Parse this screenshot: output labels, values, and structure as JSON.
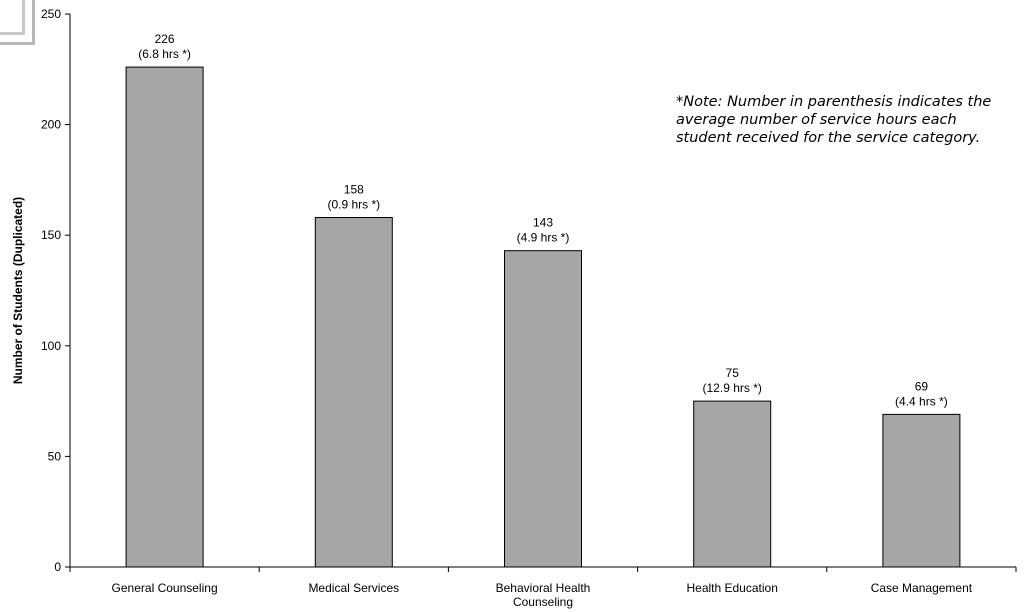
{
  "chart_data": {
    "type": "bar",
    "title": "",
    "xlabel": "",
    "ylabel": "Number of Students (Duplicated)",
    "ylim": [
      0,
      250
    ],
    "yticks": [
      0,
      50,
      100,
      150,
      200,
      250
    ],
    "grid": false,
    "legend": "none",
    "bar_color": "#a6a6a6",
    "categories": [
      [
        "General Counseling"
      ],
      [
        "Medical Services"
      ],
      [
        "Behavioral Health",
        "Counseling"
      ],
      [
        "Health Education"
      ],
      [
        "Case Management"
      ]
    ],
    "values": [
      226,
      158,
      143,
      75,
      69
    ],
    "value_labels": [
      "226",
      "158",
      "143",
      "75",
      "69"
    ],
    "hours_labels": [
      "(6.8 hrs *)",
      "(0.9 hrs *)",
      "(4.9 hrs *)",
      "(12.9 hrs *)",
      "(4.4 hrs *)"
    ],
    "annotation": "*Note: Number in parenthesis indicates the average number of service hours each student received for the service category."
  }
}
